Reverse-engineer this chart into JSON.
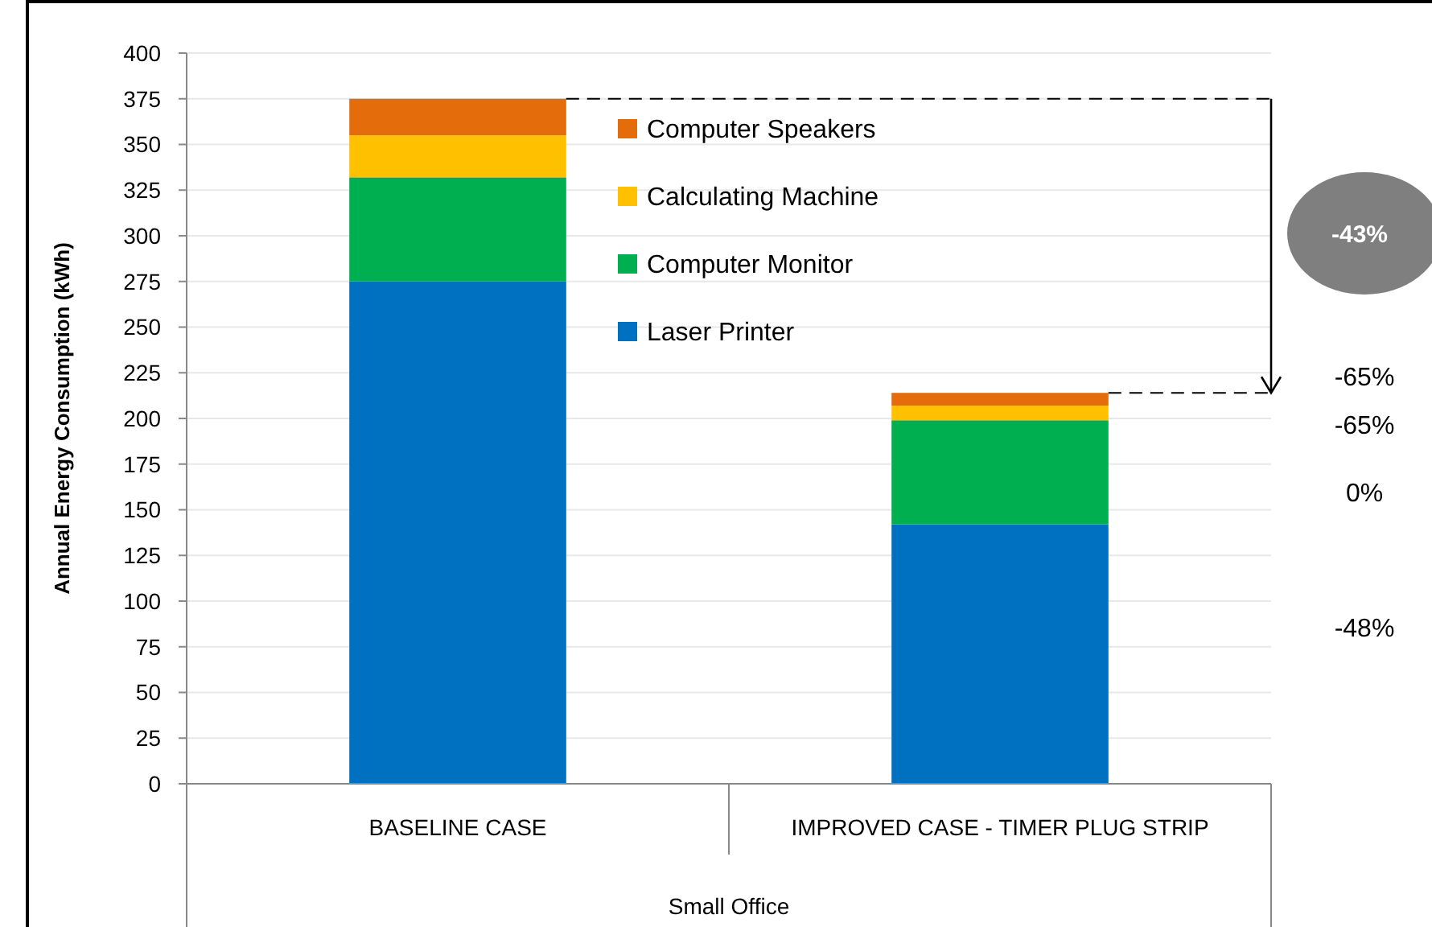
{
  "chart_data": {
    "type": "bar",
    "stacked": true,
    "ylabel": "Annual Energy Consumption (kWh)",
    "xlabel": "Small Office",
    "categories": [
      "BASELINE CASE",
      "IMPROVED CASE - TIMER  PLUG STRIP"
    ],
    "series": [
      {
        "name": "Laser Printer",
        "color": "#0070c0",
        "values": [
          275,
          142
        ]
      },
      {
        "name": "Computer Monitor",
        "color": "#00b050",
        "values": [
          57,
          57
        ]
      },
      {
        "name": "Calculating Machine",
        "color": "#ffc000",
        "values": [
          23,
          8
        ]
      },
      {
        "name": "Computer Speakers",
        "color": "#e46c0a",
        "values": [
          20,
          7
        ]
      }
    ],
    "ylim": [
      0,
      400
    ],
    "yticks": [
      0,
      25,
      50,
      75,
      100,
      125,
      150,
      175,
      200,
      225,
      250,
      275,
      300,
      325,
      350,
      375,
      400
    ],
    "grid": "y",
    "legend": "top",
    "ref_lines": [
      {
        "axis": "y",
        "value": 375,
        "color": "#000000",
        "line_style": "dashed"
      },
      {
        "axis": "y",
        "value": 214,
        "color": "#000000",
        "line_style": "dashed"
      }
    ],
    "annotations": [
      "-43%",
      "-65%",
      "-65%",
      "0%",
      "-48%"
    ]
  }
}
